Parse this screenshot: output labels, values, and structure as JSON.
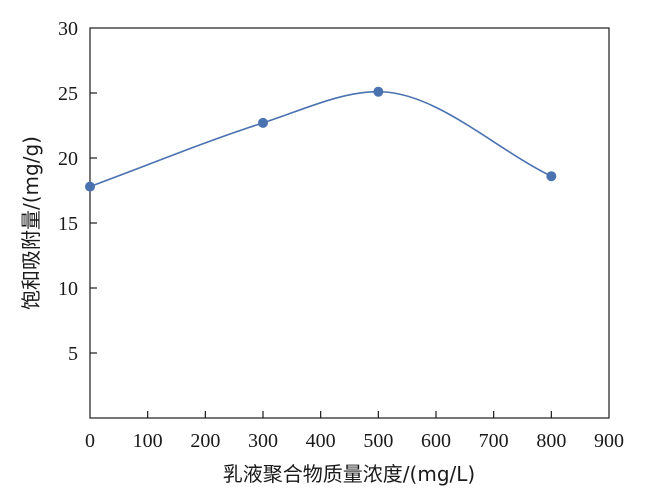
{
  "chart_data": {
    "type": "line",
    "title": "",
    "xlabel": "乳液聚合物质量浓度/(mg/L)",
    "ylabel": "饱和吸附量/(mg/g)",
    "xlim": [
      0,
      900
    ],
    "ylim": [
      0,
      30
    ],
    "xticks": [
      0,
      100,
      200,
      300,
      400,
      500,
      600,
      700,
      800,
      900
    ],
    "yticks": [
      5,
      10,
      15,
      20,
      25,
      30
    ],
    "smooth": true,
    "grid": false,
    "legend": "none",
    "series": [
      {
        "x": [
          0,
          300,
          500,
          800
        ],
        "y": [
          17.8,
          22.7,
          25.1,
          18.6
        ]
      }
    ],
    "color": "#4a72b0"
  }
}
